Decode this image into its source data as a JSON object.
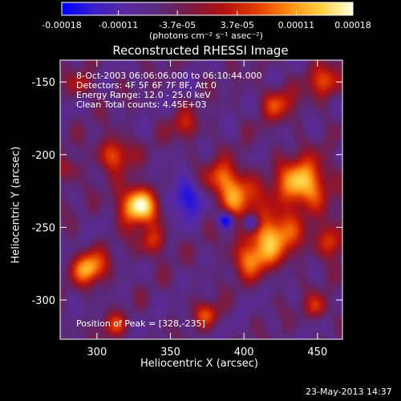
{
  "chart_data": {
    "type": "heatmap",
    "title": "Reconstructed RHESSI Image",
    "xlabel": "Heliocentric X (arcsec)",
    "ylabel": "Heliocentric Y (arcsec)",
    "xlim": [
      275,
      467
    ],
    "ylim": [
      -327,
      -135
    ],
    "x_ticks": [
      300,
      350,
      400,
      450
    ],
    "y_ticks": [
      -150,
      -200,
      -250,
      -300
    ],
    "colorbar": {
      "min": -0.00018,
      "max": 0.00018,
      "tick_values": [
        -0.00018,
        -0.00011,
        -3.7e-05,
        3.7e-05,
        0.00011,
        0.00018
      ],
      "tick_labels": [
        "-0.00018",
        "-0.00011",
        "-3.7e-05",
        "3.7e-05",
        "0.00011",
        "0.00018"
      ],
      "unit_label": "(photons cm⁻² s⁻¹ asec⁻²)",
      "colors": [
        "#0000ff",
        "#3b1fc8",
        "#5a2aa0",
        "#5b2a7c",
        "#7a1a40",
        "#b41010",
        "#e23a00",
        "#ff8a10",
        "#ffd040",
        "#ffffe0"
      ]
    },
    "sources": [
      {
        "x": 328,
        "y": -235,
        "amp": 1.0,
        "sigma": 9
      },
      {
        "x": 295,
        "y": -278,
        "amp": 0.75,
        "sigma": 8
      },
      {
        "x": 312,
        "y": -200,
        "amp": 0.55,
        "sigma": 8
      },
      {
        "x": 338,
        "y": -260,
        "amp": 0.45,
        "sigma": 7
      },
      {
        "x": 440,
        "y": -220,
        "amp": 0.85,
        "sigma": 12
      },
      {
        "x": 420,
        "y": -255,
        "amp": 0.75,
        "sigma": 12
      },
      {
        "x": 395,
        "y": -228,
        "amp": 0.65,
        "sigma": 10
      },
      {
        "x": 405,
        "y": -272,
        "amp": 0.55,
        "sigma": 9
      },
      {
        "x": 460,
        "y": -260,
        "amp": 0.5,
        "sigma": 8
      },
      {
        "x": 455,
        "y": -150,
        "amp": 0.5,
        "sigma": 8
      },
      {
        "x": 423,
        "y": -165,
        "amp": 0.45,
        "sigma": 8
      },
      {
        "x": 385,
        "y": -215,
        "amp": 0.45,
        "sigma": 8
      },
      {
        "x": 360,
        "y": -180,
        "amp": 0.35,
        "sigma": 7
      },
      {
        "x": 375,
        "y": -310,
        "amp": 0.45,
        "sigma": 6
      },
      {
        "x": 312,
        "y": -318,
        "amp": 0.4,
        "sigma": 6
      },
      {
        "x": 450,
        "y": -305,
        "amp": 0.4,
        "sigma": 6
      },
      {
        "x": 280,
        "y": -210,
        "amp": 0.3,
        "sigma": 6
      },
      {
        "x": 290,
        "y": -152,
        "amp": 0.35,
        "sigma": 6
      }
    ],
    "negative_spots": [
      {
        "x": 388,
        "y": -245,
        "amp": 0.6,
        "sigma": 4
      },
      {
        "x": 405,
        "y": -247,
        "amp": 0.6,
        "sigma": 4
      },
      {
        "x": 360,
        "y": -230,
        "amp": 0.45,
        "sigma": 9
      }
    ]
  },
  "annotations": {
    "time_range": "8-Oct-2003 06:06:06.000 to 06:10:44.000",
    "detectors": "Detectors: 4F 5F 6F 7F 8F, Att 0",
    "energy": "Energy Range: 12.0 - 25.0 keV",
    "method": "Clean    Total counts: 4.45E+03",
    "peak": "Position of Peak = [328,-235]"
  },
  "footer_date": "23-May-2013 14:37"
}
